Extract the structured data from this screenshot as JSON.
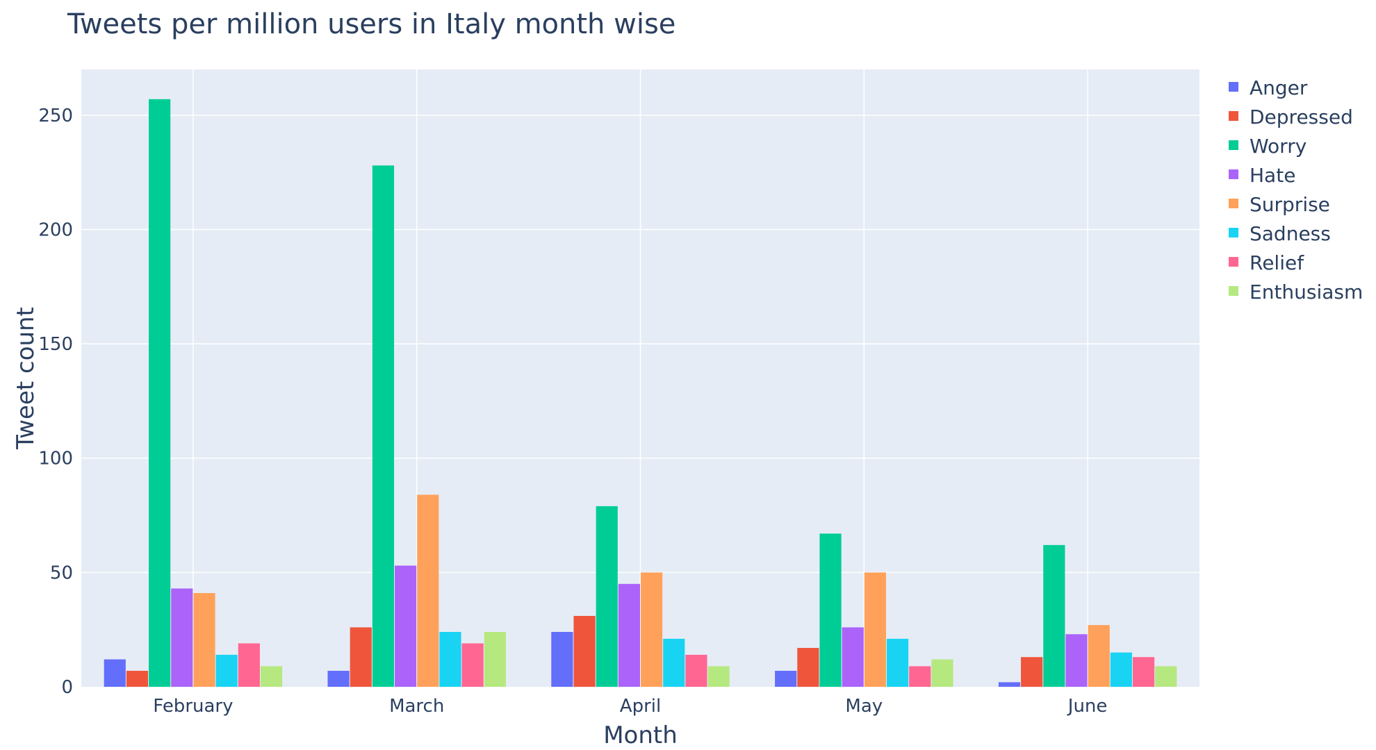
{
  "chart_data": {
    "type": "bar",
    "title": "Tweets per million users in Italy month wise",
    "xlabel": "Month",
    "ylabel": "Tweet count",
    "categories": [
      "February",
      "March",
      "April",
      "May",
      "June"
    ],
    "ylim": [
      0,
      270
    ],
    "yticks": [
      0,
      50,
      100,
      150,
      200,
      250
    ],
    "grid": true,
    "legend_position": "right",
    "background": "#E5ECF6",
    "series": [
      {
        "name": "Anger",
        "color": "#636EFA",
        "values": [
          12,
          7,
          24,
          7,
          2
        ]
      },
      {
        "name": "Depressed",
        "color": "#EF553B",
        "values": [
          7,
          26,
          31,
          17,
          13
        ]
      },
      {
        "name": "Worry",
        "color": "#00CC96",
        "values": [
          257,
          228,
          79,
          67,
          62
        ]
      },
      {
        "name": "Hate",
        "color": "#AB63FA",
        "values": [
          43,
          53,
          45,
          26,
          23
        ]
      },
      {
        "name": "Surprise",
        "color": "#FFA15A",
        "values": [
          41,
          84,
          50,
          50,
          27
        ]
      },
      {
        "name": "Sadness",
        "color": "#19D3F3",
        "values": [
          14,
          24,
          21,
          21,
          15
        ]
      },
      {
        "name": "Relief",
        "color": "#FF6692",
        "values": [
          19,
          19,
          14,
          9,
          13
        ]
      },
      {
        "name": "Enthusiasm",
        "color": "#B6E880",
        "values": [
          9,
          24,
          9,
          12,
          9
        ]
      }
    ]
  }
}
